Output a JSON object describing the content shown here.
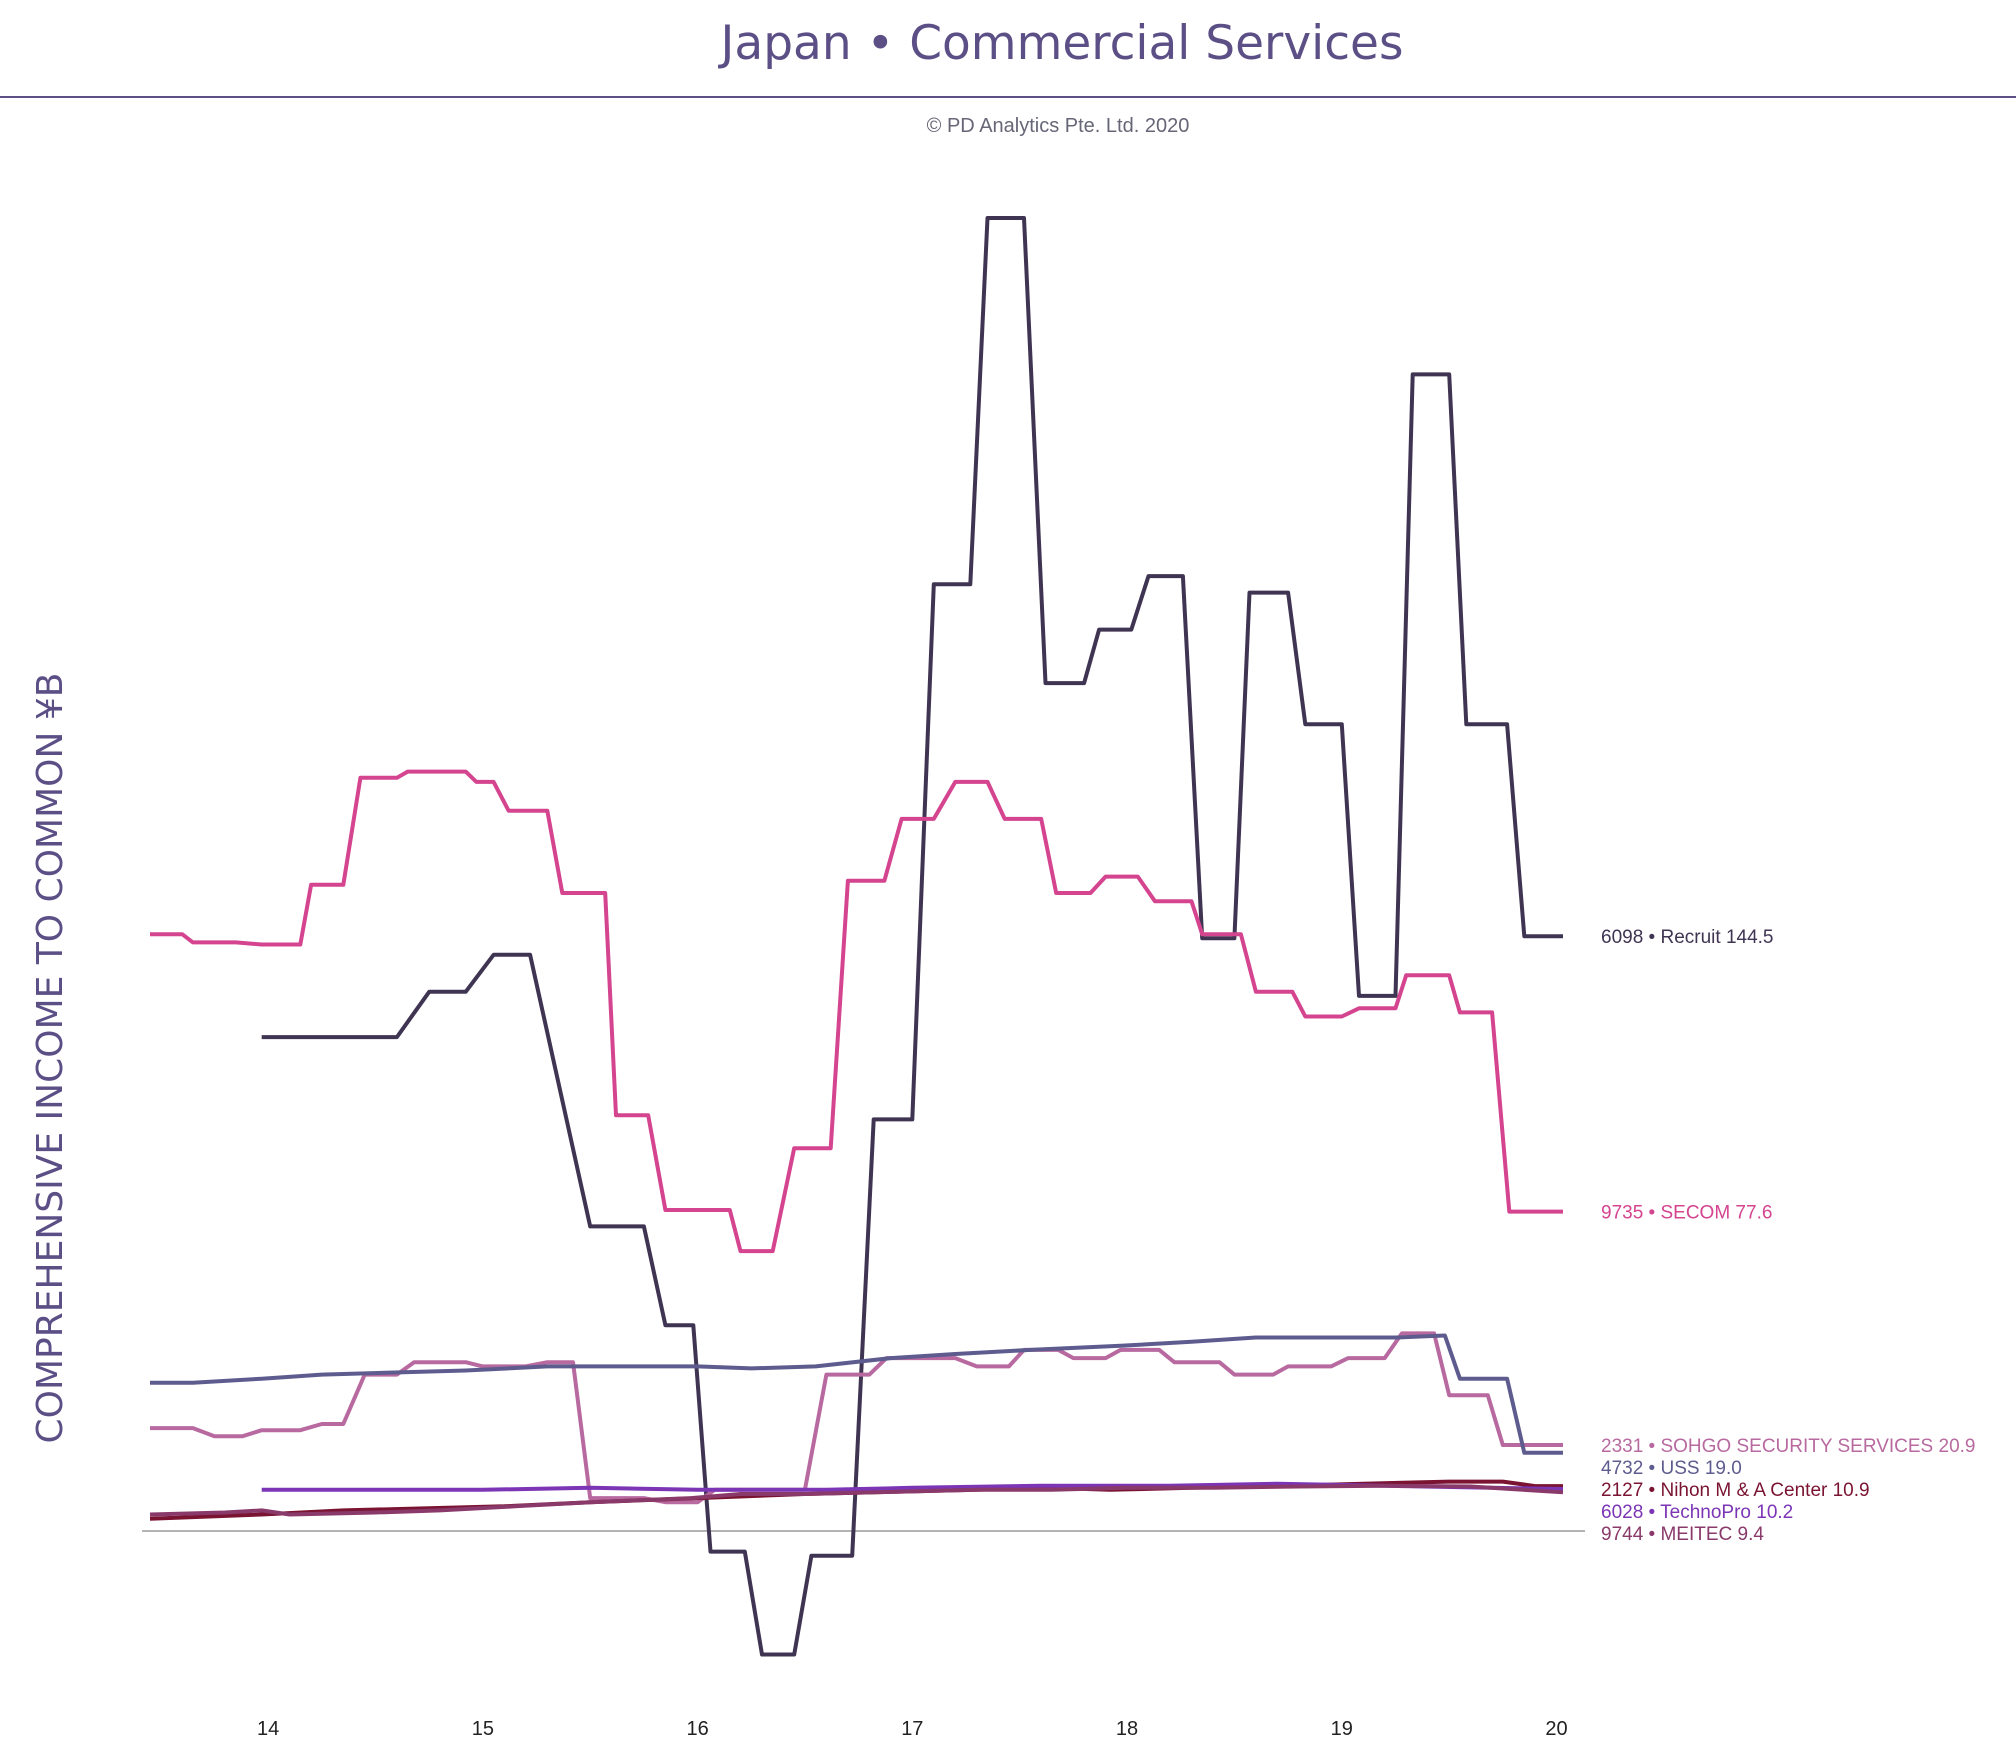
{
  "title": "Japan • Commercial Services",
  "copyright": "© PD Analytics Pte. Ltd. 2020",
  "chart_data": {
    "type": "line",
    "ylabel": "COMPREHENSIVE INCOME TO COMMON ¥B",
    "xlabel": "",
    "x_tick_labels": [
      "14",
      "15",
      "16",
      "17",
      "18",
      "19",
      "20"
    ],
    "x_tick_values": [
      2014,
      2015,
      2016,
      2017,
      2018,
      2019,
      2020
    ],
    "xlim": [
      2013.45,
      2020.1
    ],
    "ylim": [
      -40,
      320
    ],
    "zero_line": true,
    "grid": false,
    "legend": "end-of-line labels",
    "series": [
      {
        "name": "6098 • Recruit",
        "end_value_label": "144.5",
        "color": "#3f3552",
        "points": [
          [
            2013.97,
            120
          ],
          [
            2014.6,
            120
          ],
          [
            2014.75,
            131
          ],
          [
            2014.92,
            131
          ],
          [
            2015.05,
            140
          ],
          [
            2015.22,
            140
          ],
          [
            2015.5,
            74
          ],
          [
            2015.75,
            74
          ],
          [
            2015.85,
            50
          ],
          [
            2015.98,
            50
          ],
          [
            2016.06,
            -5
          ],
          [
            2016.22,
            -5
          ],
          [
            2016.3,
            -30
          ],
          [
            2016.45,
            -30
          ],
          [
            2016.53,
            -6
          ],
          [
            2016.72,
            -6
          ],
          [
            2016.82,
            100
          ],
          [
            2017.0,
            100
          ],
          [
            2017.1,
            230
          ],
          [
            2017.27,
            230
          ],
          [
            2017.35,
            319
          ],
          [
            2017.52,
            319
          ],
          [
            2017.62,
            206
          ],
          [
            2017.8,
            206
          ],
          [
            2017.87,
            219
          ],
          [
            2018.02,
            219
          ],
          [
            2018.1,
            232
          ],
          [
            2018.26,
            232
          ],
          [
            2018.35,
            144
          ],
          [
            2018.5,
            144
          ],
          [
            2018.57,
            228
          ],
          [
            2018.75,
            228
          ],
          [
            2018.83,
            196
          ],
          [
            2019.0,
            196
          ],
          [
            2019.08,
            130
          ],
          [
            2019.25,
            130
          ],
          [
            2019.33,
            281
          ],
          [
            2019.5,
            281
          ],
          [
            2019.58,
            196
          ],
          [
            2019.77,
            196
          ],
          [
            2019.85,
            144.5
          ],
          [
            2020.03,
            144.5
          ]
        ]
      },
      {
        "name": "9735 • SECOM",
        "end_value_label": "77.6",
        "color": "#d4448f",
        "points": [
          [
            2013.45,
            145
          ],
          [
            2013.6,
            145
          ],
          [
            2013.65,
            143
          ],
          [
            2013.85,
            143
          ],
          [
            2013.97,
            142.5
          ],
          [
            2014.15,
            142.5
          ],
          [
            2014.2,
            157
          ],
          [
            2014.35,
            157
          ],
          [
            2014.43,
            183
          ],
          [
            2014.6,
            183
          ],
          [
            2014.65,
            184.5
          ],
          [
            2014.92,
            184.5
          ],
          [
            2014.97,
            182
          ],
          [
            2015.05,
            182
          ],
          [
            2015.12,
            175
          ],
          [
            2015.3,
            175
          ],
          [
            2015.37,
            155
          ],
          [
            2015.57,
            155
          ],
          [
            2015.62,
            101
          ],
          [
            2015.77,
            101
          ],
          [
            2015.85,
            78
          ],
          [
            2015.98,
            78
          ],
          [
            2016.05,
            78
          ],
          [
            2016.15,
            78
          ],
          [
            2016.2,
            68
          ],
          [
            2016.35,
            68
          ],
          [
            2016.45,
            93
          ],
          [
            2016.62,
            93
          ],
          [
            2016.7,
            158
          ],
          [
            2016.87,
            158
          ],
          [
            2016.95,
            173
          ],
          [
            2017.1,
            173
          ],
          [
            2017.2,
            182
          ],
          [
            2017.35,
            182
          ],
          [
            2017.43,
            173
          ],
          [
            2017.6,
            173
          ],
          [
            2017.67,
            155
          ],
          [
            2017.83,
            155
          ],
          [
            2017.9,
            159
          ],
          [
            2018.05,
            159
          ],
          [
            2018.13,
            153
          ],
          [
            2018.3,
            153
          ],
          [
            2018.35,
            145
          ],
          [
            2018.53,
            145
          ],
          [
            2018.6,
            131
          ],
          [
            2018.77,
            131
          ],
          [
            2018.83,
            125
          ],
          [
            2019.0,
            125
          ],
          [
            2019.08,
            127
          ],
          [
            2019.25,
            127
          ],
          [
            2019.3,
            135
          ],
          [
            2019.5,
            135
          ],
          [
            2019.55,
            126
          ],
          [
            2019.7,
            126
          ],
          [
            2019.78,
            77.6
          ],
          [
            2020.03,
            77.6
          ]
        ]
      },
      {
        "name": "2331 • SOHGO SECURITY SERVICES",
        "end_value_label": "20.9",
        "color": "#b86aa0",
        "points": [
          [
            2013.45,
            25
          ],
          [
            2013.65,
            25
          ],
          [
            2013.75,
            23
          ],
          [
            2013.88,
            23
          ],
          [
            2013.97,
            24.5
          ],
          [
            2014.15,
            24.5
          ],
          [
            2014.25,
            26
          ],
          [
            2014.35,
            26
          ],
          [
            2014.45,
            38
          ],
          [
            2014.6,
            38
          ],
          [
            2014.68,
            41
          ],
          [
            2014.92,
            41
          ],
          [
            2015.0,
            40
          ],
          [
            2015.2,
            40
          ],
          [
            2015.3,
            41
          ],
          [
            2015.42,
            41
          ],
          [
            2015.5,
            8
          ],
          [
            2015.75,
            8
          ],
          [
            2015.85,
            7
          ],
          [
            2016.0,
            7
          ],
          [
            2016.08,
            10
          ],
          [
            2016.5,
            10
          ],
          [
            2016.6,
            38
          ],
          [
            2016.8,
            38
          ],
          [
            2016.88,
            42
          ],
          [
            2017.2,
            42
          ],
          [
            2017.3,
            40
          ],
          [
            2017.45,
            40
          ],
          [
            2017.52,
            44
          ],
          [
            2017.68,
            44
          ],
          [
            2017.75,
            42
          ],
          [
            2017.9,
            42
          ],
          [
            2017.97,
            44
          ],
          [
            2018.15,
            44
          ],
          [
            2018.22,
            41
          ],
          [
            2018.43,
            41
          ],
          [
            2018.5,
            38
          ],
          [
            2018.68,
            38
          ],
          [
            2018.75,
            40
          ],
          [
            2018.95,
            40
          ],
          [
            2019.03,
            42
          ],
          [
            2019.2,
            42
          ],
          [
            2019.28,
            48
          ],
          [
            2019.43,
            48
          ],
          [
            2019.5,
            33
          ],
          [
            2019.68,
            33
          ],
          [
            2019.75,
            20.9
          ],
          [
            2020.03,
            20.9
          ]
        ]
      },
      {
        "name": "4732 • USS",
        "end_value_label": "19.0",
        "color": "#5e5c8e",
        "points": [
          [
            2013.45,
            36
          ],
          [
            2013.65,
            36
          ],
          [
            2013.97,
            37
          ],
          [
            2014.25,
            38
          ],
          [
            2014.92,
            39
          ],
          [
            2015.3,
            40
          ],
          [
            2016.0,
            40
          ],
          [
            2016.25,
            39.5
          ],
          [
            2016.55,
            40
          ],
          [
            2016.9,
            42
          ],
          [
            2017.2,
            43
          ],
          [
            2017.55,
            44
          ],
          [
            2017.97,
            45
          ],
          [
            2018.3,
            46
          ],
          [
            2018.6,
            47
          ],
          [
            2019.0,
            47
          ],
          [
            2019.25,
            47
          ],
          [
            2019.48,
            47.5
          ],
          [
            2019.55,
            37
          ],
          [
            2019.77,
            37
          ],
          [
            2019.85,
            19
          ],
          [
            2020.03,
            19
          ]
        ]
      },
      {
        "name": "2127 • Nihon M & A Center",
        "end_value_label": "10.9",
        "color": "#7a1432",
        "points": [
          [
            2013.45,
            3
          ],
          [
            2013.97,
            4
          ],
          [
            2014.35,
            5
          ],
          [
            2015.1,
            6
          ],
          [
            2015.5,
            7
          ],
          [
            2016.0,
            8
          ],
          [
            2016.5,
            9
          ],
          [
            2016.9,
            9.5
          ],
          [
            2017.3,
            10
          ],
          [
            2017.62,
            10.5
          ],
          [
            2017.92,
            10
          ],
          [
            2018.3,
            10.5
          ],
          [
            2018.75,
            11
          ],
          [
            2019.1,
            11.5
          ],
          [
            2019.5,
            12
          ],
          [
            2019.75,
            12
          ],
          [
            2019.9,
            10.9
          ],
          [
            2020.03,
            10.9
          ]
        ]
      },
      {
        "name": "6028 • TechnoPro",
        "end_value_label": "10.2",
        "color": "#7b35b5",
        "points": [
          [
            2013.97,
            10
          ],
          [
            2015.0,
            10
          ],
          [
            2015.5,
            10.5
          ],
          [
            2016.0,
            10
          ],
          [
            2016.6,
            10
          ],
          [
            2017.0,
            10.5
          ],
          [
            2017.6,
            11
          ],
          [
            2018.2,
            11
          ],
          [
            2018.7,
            11.5
          ],
          [
            2019.2,
            11
          ],
          [
            2019.7,
            10.5
          ],
          [
            2020.03,
            10.2
          ]
        ]
      },
      {
        "name": "9744 • MEITEC",
        "end_value_label": "9.4",
        "color": "#8a3a6a",
        "points": [
          [
            2013.45,
            4
          ],
          [
            2013.8,
            4.5
          ],
          [
            2013.97,
            5
          ],
          [
            2014.1,
            4
          ],
          [
            2014.5,
            4.5
          ],
          [
            2014.8,
            5
          ],
          [
            2015.15,
            6
          ],
          [
            2015.5,
            7
          ],
          [
            2015.97,
            8
          ],
          [
            2016.2,
            9
          ],
          [
            2016.5,
            9
          ],
          [
            2016.9,
            9.5
          ],
          [
            2017.3,
            10
          ],
          [
            2017.65,
            10
          ],
          [
            2018.0,
            10.5
          ],
          [
            2018.4,
            10.5
          ],
          [
            2018.8,
            10.8
          ],
          [
            2019.2,
            11
          ],
          [
            2019.6,
            10.8
          ],
          [
            2020.03,
            9.4
          ]
        ]
      }
    ]
  }
}
